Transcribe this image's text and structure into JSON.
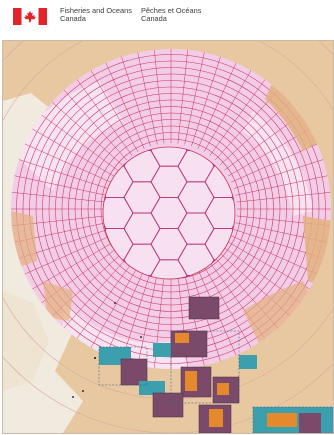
{
  "header": {
    "signature": {
      "english_line1": "Fisheries and Oceans",
      "english_line2": "Canada",
      "french_line1": "Pêches et Océans",
      "french_line2": "Canada"
    },
    "flag_icon": "canada-flag-icon"
  },
  "map": {
    "subject": "circumpolar Arctic grid map",
    "colors": {
      "land": "#e8c8a0",
      "ocean_grid_area": "#f3cde7",
      "grid_lines": "#c9355e",
      "coastal_shelf": "#f4e6f1",
      "dark_charts": "#7b4a6a",
      "teal_charts": "#3c9fae",
      "orange_charts": "#e48a2c"
    }
  }
}
